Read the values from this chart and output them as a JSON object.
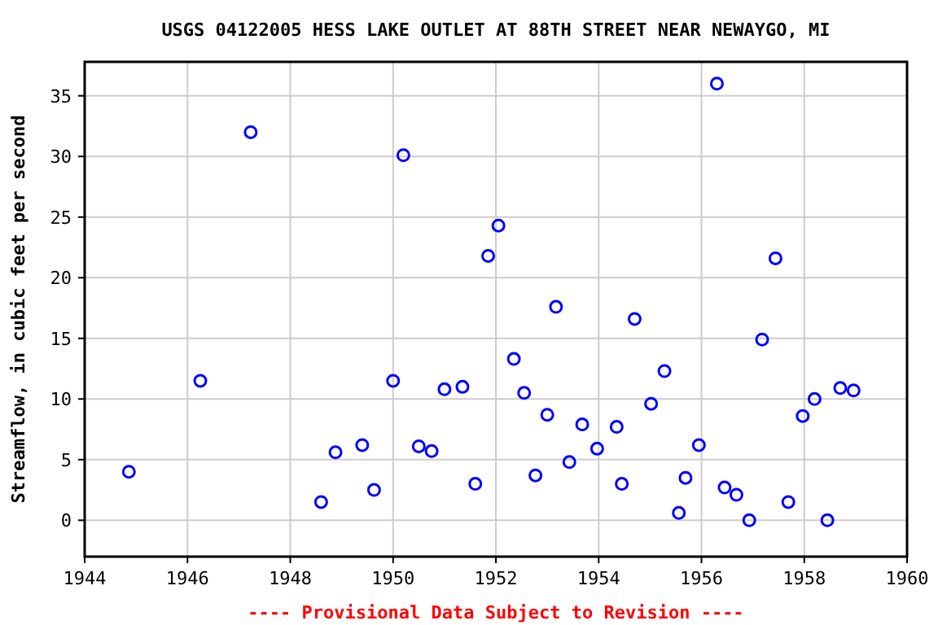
{
  "chart_data": {
    "type": "scatter",
    "title": "USGS 04122005 HESS LAKE OUTLET AT 88TH STREET NEAR NEWAYGO, MI",
    "ylabel": "Streamflow, in cubic feet per second",
    "annotations": [
      "---- Provisional Data Subject to Revision ----"
    ],
    "x": [
      1944.86,
      1946.25,
      1947.23,
      1948.6,
      1948.88,
      1949.4,
      1949.63,
      1950.0,
      1950.2,
      1950.5,
      1950.75,
      1951.0,
      1951.35,
      1951.6,
      1951.85,
      1952.05,
      1952.35,
      1952.55,
      1952.77,
      1953.0,
      1953.17,
      1953.43,
      1953.68,
      1953.97,
      1954.35,
      1954.45,
      1954.7,
      1955.02,
      1955.28,
      1955.56,
      1955.69,
      1955.95,
      1956.3,
      1956.45,
      1956.68,
      1956.93,
      1957.18,
      1957.44,
      1957.69,
      1957.97,
      1958.2,
      1958.45,
      1958.7,
      1958.96
    ],
    "series": [
      {
        "color": "#0000ff",
        "values": [
          4.0,
          11.5,
          32.0,
          1.5,
          5.6,
          6.2,
          2.5,
          11.5,
          30.1,
          6.1,
          5.7,
          10.8,
          11.0,
          3.0,
          21.8,
          24.3,
          13.3,
          10.5,
          3.7,
          8.7,
          17.6,
          4.8,
          7.9,
          5.9,
          7.7,
          3.0,
          16.6,
          9.6,
          12.3,
          0.6,
          3.5,
          6.2,
          36.0,
          2.7,
          2.1,
          0.0,
          14.9,
          21.6,
          1.5,
          8.6,
          10.0,
          0.0,
          10.9,
          10.7
        ]
      }
    ],
    "xlim": [
      1944,
      1960
    ],
    "xticks": [
      1944,
      1946,
      1948,
      1950,
      1952,
      1954,
      1956,
      1958,
      1960
    ],
    "ylim": [
      -3,
      37.8
    ],
    "yticks": [
      0,
      5,
      10,
      15,
      20,
      25,
      30,
      35
    ],
    "grid": true,
    "marker": "circle"
  }
}
